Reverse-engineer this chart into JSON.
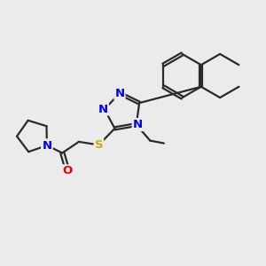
{
  "bg_color": "#ebebeb",
  "bond_color": "#2a2a2a",
  "bond_width": 1.6,
  "dbo": 0.05,
  "atom_colors": {
    "N": "#0000ee",
    "O": "#ee0000",
    "S": "#ccaa00",
    "C": "#2a2a2a"
  }
}
